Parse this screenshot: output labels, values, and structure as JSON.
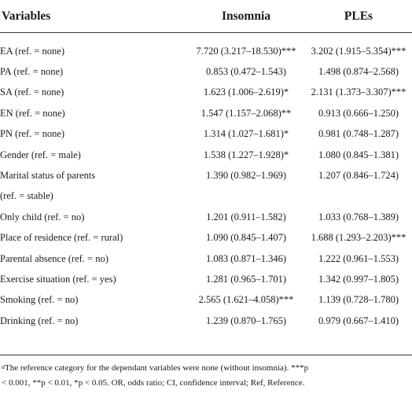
{
  "table": {
    "headers": {
      "variables": "Variables",
      "insomnia": "Insomnia",
      "ples": "PLEs"
    },
    "rows": [
      {
        "variable": "EA (ref. = none)",
        "insomnia": "7.720 (3.217–18.530)***",
        "ples": "3.202 (1.915–5.354)***"
      },
      {
        "variable": "PA (ref. = none)",
        "insomnia": "0.853 (0.472–1.543)",
        "ples": "1.498 (0.874–2.568)"
      },
      {
        "variable": "SA (ref. = none)",
        "insomnia": "1.623 (1.006–2.619)*",
        "ples": "2.131 (1.373–3.307)***"
      },
      {
        "variable": "EN (ref. = none)",
        "insomnia": "1.547 (1.157–2.068)**",
        "ples": "0.913 (0.666–1.250)"
      },
      {
        "variable": "PN (ref. = none)",
        "insomnia": "1.314 (1.027–1.681)*",
        "ples": "0.981 (0.748–1.287)"
      },
      {
        "variable": "Gender (ref. = male)",
        "insomnia": "1.538 (1.227–1.928)*",
        "ples": "1.080 (0.845–1.381)"
      },
      {
        "variable": "Marital status of parents",
        "insomnia": "1.390 (0.982–1.969)",
        "ples": "1.207 (0.846–1.724)"
      },
      {
        "variable": "(ref. = stable)",
        "insomnia": "",
        "ples": ""
      },
      {
        "variable": "Only child (ref. = no)",
        "insomnia": "1.201 (0.911–1.582)",
        "ples": "1.033 (0.768–1.389)"
      },
      {
        "variable": "Place of residence (ref. = rural)",
        "insomnia": "1.090 (0.845–1.407)",
        "ples": "1.688 (1.293–2.203)***"
      },
      {
        "variable": "Parental absence (ref. = no)",
        "insomnia": "1.083 (0.871–1.346)",
        "ples": "1.222 (0.961–1.553)"
      },
      {
        "variable": "Exercise situation (ref. = yes)",
        "insomnia": "1.281 (0.965–1.701)",
        "ples": "1.342 (0.997–1.805)"
      },
      {
        "variable": "Smoking (ref. = no)",
        "insomnia": "2.565 (1.621–4.058)***",
        "ples": "1.139 (0.728–1.780)"
      },
      {
        "variable": "Drinking (ref. = no)",
        "insomnia": "1.239 (0.870–1.765)",
        "ples": "0.979 (0.667–1.410)"
      }
    ]
  },
  "footnote": {
    "marker": "a",
    "line1": "The reference category for the dependant variables were none (without insomnia). ***p",
    "line2": "< 0.001, **p < 0.01, *p < 0.05. OR, odds ratio; CI, confidence interval; Ref, Reference."
  }
}
